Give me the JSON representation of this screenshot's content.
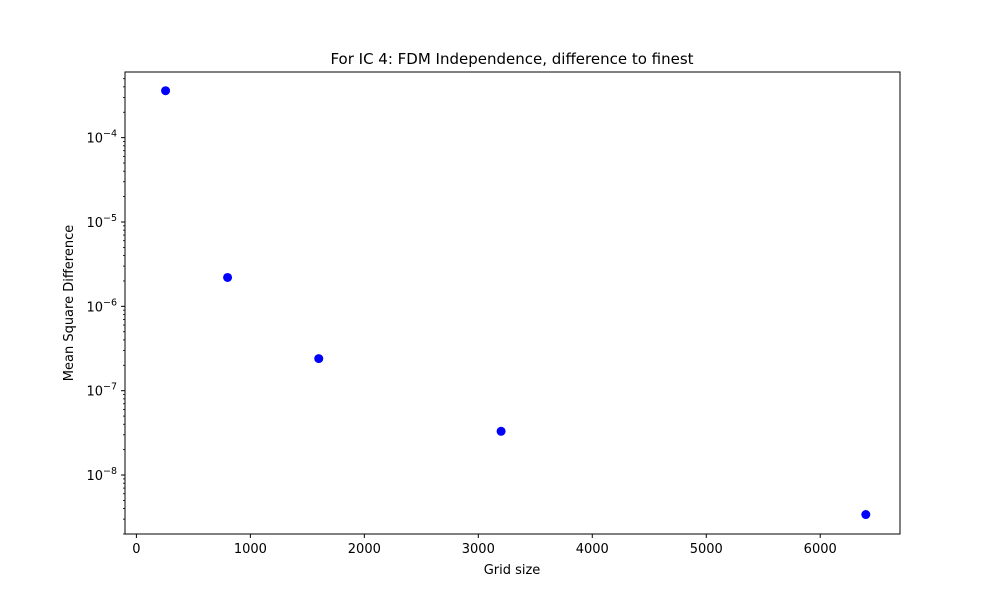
{
  "chart_data": {
    "type": "scatter",
    "title": "For IC 4: FDM Independence, difference to finest",
    "xlabel": "Grid size",
    "ylabel": "Mean Square Difference",
    "xlim": [
      -100,
      6700
    ],
    "ylim": [
      2e-09,
      0.0006
    ],
    "yscale": "log",
    "grid": false,
    "x_ticks": [
      0,
      1000,
      2000,
      3000,
      4000,
      5000,
      6000
    ],
    "y_major_ticks": [
      {
        "value": 1e-08,
        "base": "10",
        "exponent": "−8"
      },
      {
        "value": 1e-07,
        "base": "10",
        "exponent": "−7"
      },
      {
        "value": 1e-06,
        "base": "10",
        "exponent": "−6"
      },
      {
        "value": 1e-05,
        "base": "10",
        "exponent": "−5"
      },
      {
        "value": 0.0001,
        "base": "10",
        "exponent": "−4"
      }
    ],
    "series": [
      {
        "color": "#0000ff",
        "marker": "circle",
        "x": [
          256,
          800,
          1600,
          3200,
          6400
        ],
        "y": [
          0.00036,
          2.2e-06,
          2.4e-07,
          3.3e-08,
          3.4e-09
        ]
      }
    ]
  }
}
